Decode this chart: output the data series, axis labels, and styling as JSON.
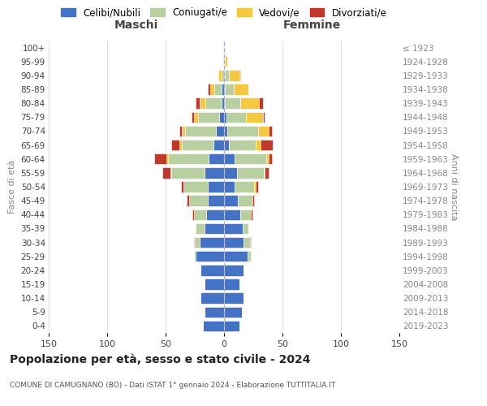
{
  "age_groups": [
    "0-4",
    "5-9",
    "10-14",
    "15-19",
    "20-24",
    "25-29",
    "30-34",
    "35-39",
    "40-44",
    "45-49",
    "50-54",
    "55-59",
    "60-64",
    "65-69",
    "70-74",
    "75-79",
    "80-84",
    "85-89",
    "90-94",
    "95-99",
    "100+"
  ],
  "birth_years": [
    "2019-2023",
    "2014-2018",
    "2009-2013",
    "2004-2008",
    "1999-2003",
    "1994-1998",
    "1989-1993",
    "1984-1988",
    "1979-1983",
    "1974-1978",
    "1969-1973",
    "1964-1968",
    "1959-1963",
    "1954-1958",
    "1949-1953",
    "1944-1948",
    "1939-1943",
    "1934-1938",
    "1929-1933",
    "1924-1928",
    "≤ 1923"
  ],
  "colors": {
    "celibi": "#4472c4",
    "coniugati": "#b8cfa0",
    "vedovi": "#f5c842",
    "divorziati": "#c0392b"
  },
  "males": {
    "celibi": [
      18,
      17,
      20,
      17,
      20,
      24,
      21,
      17,
      15,
      14,
      14,
      17,
      13,
      9,
      7,
      4,
      2,
      2,
      0,
      0,
      0
    ],
    "coniugati": [
      0,
      0,
      0,
      0,
      0,
      2,
      4,
      7,
      11,
      16,
      21,
      28,
      35,
      27,
      26,
      18,
      14,
      6,
      2,
      0,
      0
    ],
    "vedovi": [
      0,
      0,
      0,
      0,
      0,
      0,
      0,
      0,
      0,
      0,
      0,
      1,
      1,
      2,
      3,
      4,
      5,
      4,
      3,
      1,
      0
    ],
    "divorziati": [
      0,
      0,
      0,
      0,
      0,
      0,
      1,
      0,
      1,
      2,
      2,
      7,
      11,
      7,
      2,
      2,
      3,
      2,
      0,
      0,
      0
    ]
  },
  "females": {
    "celibi": [
      13,
      15,
      17,
      13,
      17,
      20,
      17,
      16,
      14,
      12,
      9,
      11,
      9,
      4,
      3,
      2,
      1,
      1,
      1,
      0,
      0
    ],
    "coniugati": [
      0,
      0,
      0,
      0,
      0,
      3,
      5,
      5,
      9,
      12,
      17,
      23,
      27,
      23,
      26,
      17,
      13,
      7,
      3,
      1,
      0
    ],
    "vedovi": [
      0,
      0,
      0,
      0,
      0,
      0,
      0,
      0,
      0,
      0,
      1,
      1,
      2,
      4,
      9,
      14,
      16,
      13,
      9,
      2,
      1
    ],
    "divorziati": [
      0,
      0,
      0,
      0,
      0,
      0,
      1,
      0,
      1,
      2,
      2,
      3,
      3,
      11,
      3,
      2,
      3,
      0,
      1,
      0,
      0
    ]
  },
  "xlim": 150,
  "title": "Popolazione per età, sesso e stato civile - 2024",
  "subtitle": "COMUNE DI CAMUGNANO (BO) - Dati ISTAT 1° gennaio 2024 - Elaborazione TUTTITALIA.IT",
  "ylabel_left": "Fasce di età",
  "ylabel_right": "Anni di nascita",
  "xlabel_left": "Maschi",
  "xlabel_right": "Femmine",
  "background_color": "#ffffff",
  "grid_color": "#cccccc"
}
